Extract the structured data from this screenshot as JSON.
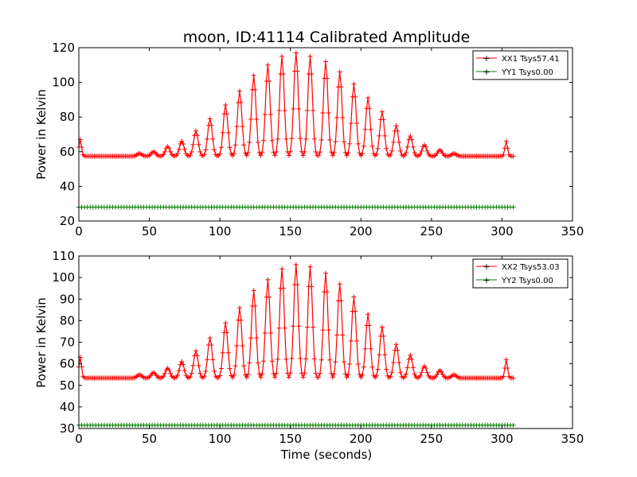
{
  "chart_data": [
    {
      "type": "line",
      "title": "moon, ID:41114 Calibrated Amplitude",
      "xlabel": "",
      "ylabel": "Power in Kelvin",
      "xlim": [
        0,
        350
      ],
      "ylim": [
        20,
        120
      ],
      "xticks": [
        0,
        50,
        100,
        150,
        200,
        250,
        300,
        350
      ],
      "yticks": [
        20,
        40,
        60,
        80,
        100,
        120
      ],
      "grid": false,
      "legend_position": "top-right",
      "baseline": 57.4,
      "peak_times": [
        1,
        43,
        53,
        63,
        73,
        83,
        93,
        104,
        114,
        124,
        134,
        144,
        154,
        164,
        175,
        185,
        195,
        205,
        215,
        225,
        235,
        245,
        256,
        266,
        303
      ],
      "peak_values": [
        67,
        59,
        60,
        63,
        66,
        72,
        79,
        87,
        95,
        104,
        110,
        115,
        117,
        115,
        112,
        106,
        99,
        91,
        83,
        75,
        69,
        64,
        61,
        59,
        66
      ],
      "series": [
        {
          "name": "XX1 Tsys57.41",
          "color": "#ff0000",
          "x_end": 308
        },
        {
          "name": "YY1 Tsys0.00",
          "color": "#008000",
          "constant": 28,
          "x_end": 308
        }
      ]
    },
    {
      "type": "line",
      "title": "",
      "xlabel": "Time (seconds)",
      "ylabel": "Power in Kelvin",
      "xlim": [
        0,
        350
      ],
      "ylim": [
        30,
        110
      ],
      "xticks": [
        0,
        50,
        100,
        150,
        200,
        250,
        300,
        350
      ],
      "yticks": [
        30,
        40,
        50,
        60,
        70,
        80,
        90,
        100,
        110
      ],
      "grid": false,
      "legend_position": "top-right",
      "baseline": 53.4,
      "peak_times": [
        1,
        43,
        53,
        63,
        73,
        83,
        93,
        104,
        114,
        124,
        134,
        144,
        154,
        164,
        175,
        185,
        195,
        205,
        215,
        225,
        235,
        245,
        256,
        266,
        303
      ],
      "peak_values": [
        63,
        55,
        56,
        58,
        61,
        66,
        72,
        79,
        86,
        94,
        99,
        104,
        106,
        105,
        102,
        97,
        91,
        83,
        77,
        69,
        64,
        59,
        57,
        55,
        62
      ],
      "series": [
        {
          "name": "XX2 Tsys53.03",
          "color": "#ff0000",
          "x_end": 308
        },
        {
          "name": "YY2 Tsys0.00",
          "color": "#008000",
          "constant": 31.5,
          "x_end": 308
        }
      ]
    }
  ]
}
